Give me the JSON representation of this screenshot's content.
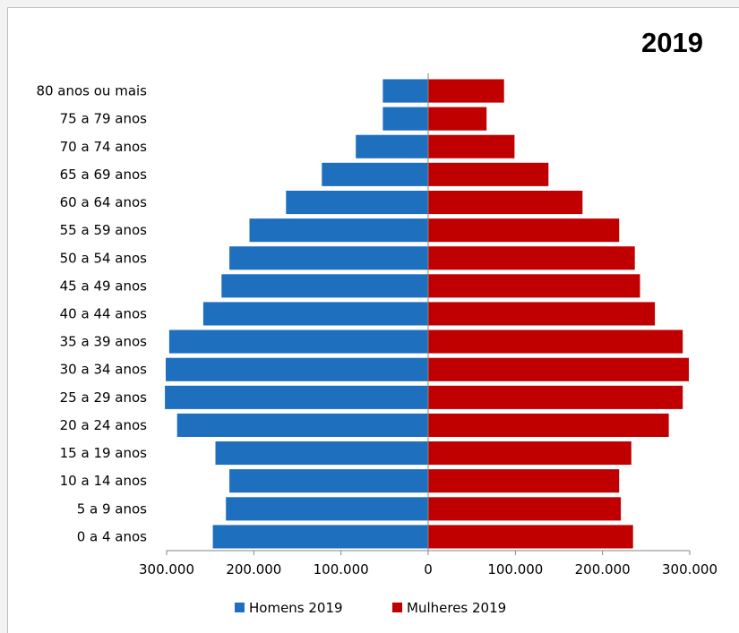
{
  "chart_data": {
    "type": "bar",
    "orientation": "horizontal",
    "title": "2019",
    "categories": [
      "0 a 4 anos",
      "5 a 9 anos",
      "10 a 14 anos",
      "15 a 19 anos",
      "20 a 24 anos",
      "25 a 29 anos",
      "30 a 34 anos",
      "35 a 39 anos",
      "40 a 44 anos",
      "45 a 49 anos",
      "50 a 54 anos",
      "55 a 59 anos",
      "60 a 64 anos",
      "65 a 69 anos",
      "70 a 74 anos",
      "75 a 79 anos",
      "80 anos ou mais"
    ],
    "series": [
      {
        "name": "Homens 2019",
        "color": "#1f6fbf",
        "side": "left",
        "values": [
          247000,
          232000,
          228000,
          244000,
          288000,
          302000,
          301000,
          297000,
          258000,
          237000,
          228000,
          205000,
          163000,
          122000,
          83000,
          52000,
          52000
        ]
      },
      {
        "name": "Mulheres 2019",
        "color": "#c00000",
        "side": "right",
        "values": [
          235000,
          221000,
          219000,
          233000,
          276000,
          292000,
          299000,
          292000,
          260000,
          243000,
          237000,
          219000,
          177000,
          138000,
          99000,
          67000,
          87000
        ]
      }
    ],
    "xlim": [
      -300000,
      300000
    ],
    "x_ticks": [
      -300000,
      -200000,
      -100000,
      0,
      100000,
      200000,
      300000
    ],
    "x_tick_labels": [
      "300.000",
      "200.000",
      "100.000",
      "0",
      "100.000",
      "200.000",
      "300.000"
    ],
    "grid": false,
    "legend_position": "bottom"
  }
}
